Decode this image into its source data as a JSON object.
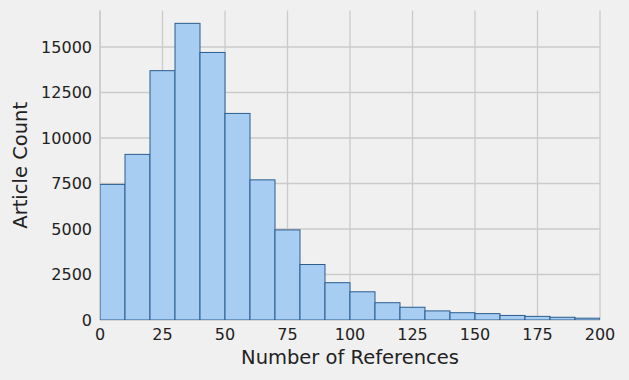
{
  "chart_data": {
    "type": "histogram",
    "x_label": "Number of References",
    "y_label": "Article Count",
    "bins": [
      0,
      10,
      20,
      30,
      40,
      50,
      60,
      70,
      80,
      90,
      100,
      110,
      120,
      130,
      140,
      150,
      160,
      170,
      180,
      190,
      200
    ],
    "values": [
      7450,
      9100,
      13700,
      16300,
      14700,
      11350,
      7700,
      4950,
      3050,
      2050,
      1550,
      950,
      700,
      500,
      400,
      350,
      250,
      200,
      150,
      100
    ],
    "color": "#a8cdf2",
    "xlim": [
      0,
      200
    ],
    "xticks": [
      0,
      25,
      50,
      75,
      100,
      125,
      150,
      175,
      200
    ],
    "ylim": [
      0,
      17000
    ],
    "yticks": [
      0,
      2500,
      5000,
      7500,
      10000,
      12500,
      15000
    ],
    "grid": true
  }
}
